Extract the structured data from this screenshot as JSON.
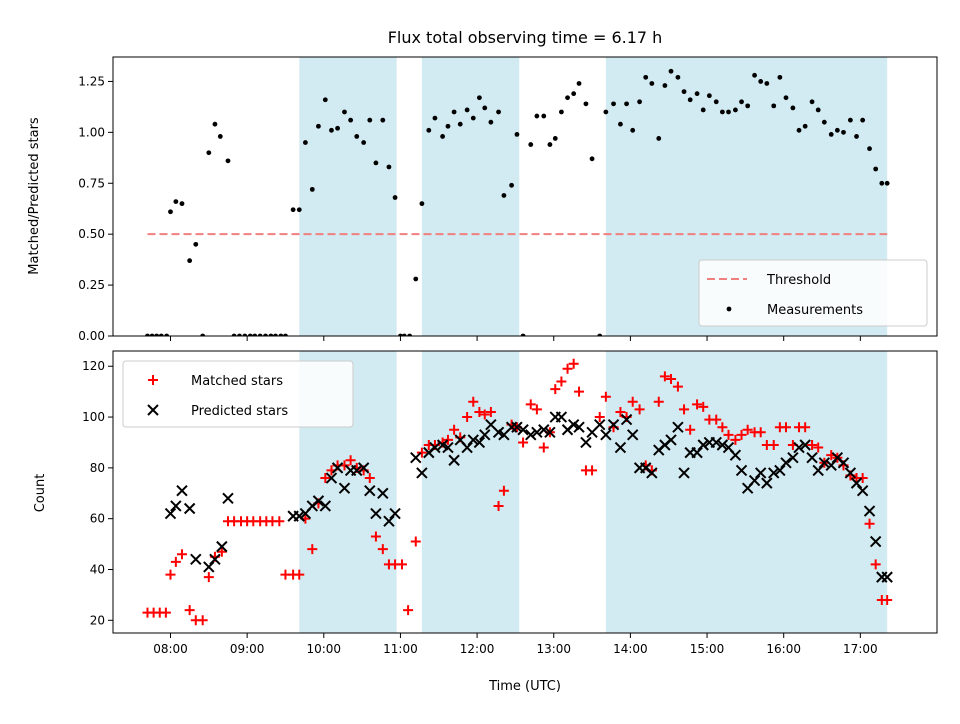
{
  "chart_data": [
    {
      "type": "scatter",
      "title": "Flux total observing time = 6.17 h",
      "xlabel": "",
      "ylabel": "Matched/Predicted stars",
      "xlim": [
        7.25,
        18.0
      ],
      "ylim": [
        0.0,
        1.37
      ],
      "yticks": [
        0.0,
        0.25,
        0.5,
        0.75,
        1.0,
        1.25
      ],
      "ytick_labels": [
        "0.00",
        "0.25",
        "0.50",
        "0.75",
        "1.00",
        "1.25"
      ],
      "xticks": [
        8,
        9,
        10,
        11,
        12,
        13,
        14,
        15,
        16,
        17
      ],
      "xtick_labels": [
        "",
        "",
        "",
        "",
        "",
        "",
        "",
        "",
        "",
        ""
      ],
      "legend": {
        "position": "lower-right",
        "entries": [
          {
            "label": "Threshold",
            "marker": "dashed-line",
            "color": "#f08080"
          },
          {
            "label": "Measurements",
            "marker": "dot",
            "color": "#000000"
          }
        ]
      },
      "shaded_intervals": [
        [
          9.68,
          10.95
        ],
        [
          11.28,
          12.55
        ],
        [
          13.68,
          17.35
        ]
      ],
      "shade_color": "#add8e6",
      "threshold": {
        "value": 0.5,
        "x_range": [
          7.7,
          17.35
        ],
        "label": "Threshold"
      },
      "series": [
        {
          "name": "Measurements",
          "color": "#000000",
          "x": [
            7.7,
            7.76,
            7.82,
            7.88,
            7.95,
            8.0,
            8.07,
            8.15,
            8.25,
            8.33,
            8.42,
            8.5,
            8.58,
            8.65,
            8.75,
            8.83,
            8.9,
            8.97,
            9.04,
            9.1,
            9.17,
            9.24,
            9.31,
            9.37,
            9.44,
            9.5,
            9.6,
            9.68,
            9.76,
            9.85,
            9.93,
            10.02,
            10.1,
            10.18,
            10.27,
            10.35,
            10.43,
            10.52,
            10.6,
            10.68,
            10.77,
            10.85,
            10.93,
            11.0,
            11.05,
            11.12,
            11.2,
            11.28,
            11.37,
            11.45,
            11.55,
            11.62,
            11.7,
            11.78,
            11.87,
            11.95,
            12.03,
            12.1,
            12.18,
            12.28,
            12.35,
            12.45,
            12.52,
            12.6,
            12.7,
            12.78,
            12.87,
            12.95,
            13.02,
            13.1,
            13.18,
            13.26,
            13.33,
            13.42,
            13.5,
            13.6,
            13.68,
            13.78,
            13.87,
            13.95,
            14.03,
            14.12,
            14.2,
            14.28,
            14.37,
            14.45,
            14.53,
            14.62,
            14.7,
            14.78,
            14.87,
            14.95,
            15.03,
            15.12,
            15.2,
            15.28,
            15.37,
            15.45,
            15.53,
            15.62,
            15.7,
            15.78,
            15.87,
            15.95,
            16.03,
            16.12,
            16.2,
            16.28,
            16.37,
            16.45,
            16.53,
            16.62,
            16.7,
            16.78,
            16.87,
            16.95,
            17.03,
            17.12,
            17.2,
            17.28,
            17.35
          ],
          "y": [
            0.0,
            0.0,
            0.0,
            0.0,
            0.0,
            0.61,
            0.66,
            0.65,
            0.37,
            0.45,
            0.0,
            0.9,
            1.04,
            0.98,
            0.86,
            0.0,
            0.0,
            0.0,
            0.0,
            0.0,
            0.0,
            0.0,
            0.0,
            0.0,
            0.0,
            0.0,
            0.62,
            0.62,
            0.95,
            0.72,
            1.03,
            1.16,
            1.01,
            1.02,
            1.1,
            1.06,
            0.98,
            0.95,
            1.06,
            0.85,
            1.06,
            0.83,
            0.68,
            0.0,
            0.0,
            0.0,
            0.28,
            0.65,
            1.01,
            1.07,
            0.98,
            1.03,
            1.1,
            1.04,
            1.11,
            1.07,
            1.17,
            1.12,
            1.05,
            1.1,
            0.69,
            0.74,
            0.99,
            0.0,
            0.94,
            1.08,
            1.08,
            0.94,
            0.97,
            1.1,
            1.17,
            1.19,
            1.24,
            1.14,
            0.87,
            0.0,
            1.1,
            1.14,
            1.04,
            1.14,
            1.01,
            1.15,
            1.27,
            1.24,
            0.97,
            1.23,
            1.3,
            1.27,
            1.2,
            1.16,
            1.19,
            1.11,
            1.18,
            1.15,
            1.1,
            1.1,
            1.11,
            1.15,
            1.13,
            1.28,
            1.25,
            1.24,
            1.13,
            1.27,
            1.17,
            1.12,
            1.01,
            1.03,
            1.15,
            1.11,
            1.05,
            0.99,
            1.01,
            1.0,
            1.06,
            0.98,
            1.06,
            0.92,
            0.82,
            0.75,
            0.75
          ]
        }
      ]
    },
    {
      "type": "scatter",
      "title": "",
      "xlabel": "Time (UTC)",
      "ylabel": "Count",
      "xlim": [
        7.25,
        18.0
      ],
      "ylim": [
        15,
        126
      ],
      "yticks": [
        20,
        40,
        60,
        80,
        100,
        120
      ],
      "ytick_labels": [
        "20",
        "40",
        "60",
        "80",
        "100",
        "120"
      ],
      "xticks": [
        8,
        9,
        10,
        11,
        12,
        13,
        14,
        15,
        16,
        17
      ],
      "xtick_labels": [
        "08:00",
        "09:00",
        "10:00",
        "11:00",
        "12:00",
        "13:00",
        "14:00",
        "15:00",
        "16:00",
        "17:00"
      ],
      "legend": {
        "position": "upper-left",
        "entries": [
          {
            "label": "Matched stars",
            "marker": "plus",
            "color": "#ff0000"
          },
          {
            "label": "Predicted stars",
            "marker": "x",
            "color": "#000000"
          }
        ]
      },
      "shaded_intervals": [
        [
          9.68,
          10.95
        ],
        [
          11.28,
          12.55
        ],
        [
          13.68,
          17.35
        ]
      ],
      "shade_color": "#add8e6",
      "series": [
        {
          "name": "Matched stars",
          "marker": "plus",
          "color": "#ff0000",
          "x": [
            7.7,
            7.78,
            7.86,
            7.94,
            8.0,
            8.07,
            8.15,
            8.25,
            8.33,
            8.42,
            8.5,
            8.58,
            8.67,
            8.75,
            8.83,
            8.92,
            9.0,
            9.08,
            9.17,
            9.25,
            9.33,
            9.42,
            9.5,
            9.6,
            9.68,
            9.76,
            9.85,
            9.93,
            10.02,
            10.1,
            10.18,
            10.27,
            10.35,
            10.43,
            10.52,
            10.6,
            10.68,
            10.77,
            10.85,
            10.93,
            11.02,
            11.1,
            11.2,
            11.28,
            11.37,
            11.45,
            11.55,
            11.62,
            11.7,
            11.78,
            11.87,
            11.95,
            12.03,
            12.1,
            12.18,
            12.28,
            12.35,
            12.45,
            12.52,
            12.6,
            12.7,
            12.78,
            12.87,
            12.95,
            13.02,
            13.1,
            13.18,
            13.26,
            13.33,
            13.42,
            13.5,
            13.6,
            13.68,
            13.78,
            13.87,
            13.95,
            14.03,
            14.12,
            14.2,
            14.28,
            14.37,
            14.45,
            14.53,
            14.62,
            14.7,
            14.78,
            14.87,
            14.95,
            15.03,
            15.12,
            15.2,
            15.28,
            15.37,
            15.45,
            15.53,
            15.62,
            15.7,
            15.78,
            15.87,
            15.95,
            16.03,
            16.12,
            16.2,
            16.28,
            16.37,
            16.45,
            16.53,
            16.62,
            16.7,
            16.78,
            16.87,
            16.95,
            17.03,
            17.12,
            17.2,
            17.28,
            17.35
          ],
          "y": [
            23,
            23,
            23,
            23,
            38,
            43,
            46,
            24,
            20,
            20,
            37,
            45,
            47,
            59,
            59,
            59,
            59,
            59,
            59,
            59,
            59,
            59,
            38,
            38,
            38,
            60,
            48,
            66,
            76,
            79,
            81,
            81,
            83,
            80,
            79,
            76,
            53,
            48,
            42,
            42,
            42,
            24,
            51,
            86,
            89,
            89,
            90,
            91,
            95,
            92,
            100,
            106,
            102,
            101,
            102,
            65,
            71,
            97,
            96,
            90,
            105,
            103,
            88,
            94,
            111,
            114,
            119,
            121,
            110,
            79,
            79,
            100,
            108,
            96,
            102,
            100,
            106,
            103,
            81,
            79,
            106,
            116,
            115,
            112,
            103,
            95,
            105,
            104,
            99,
            99,
            96,
            93,
            91,
            93,
            95,
            94,
            94,
            89,
            89,
            96,
            96,
            89,
            96,
            96,
            89,
            88,
            82,
            85,
            84,
            81,
            77,
            76,
            76,
            58,
            42,
            28,
            28
          ]
        },
        {
          "name": "Predicted stars",
          "marker": "x",
          "color": "#000000",
          "x": [
            8.0,
            8.07,
            8.15,
            8.25,
            8.33,
            8.5,
            8.58,
            8.67,
            8.75,
            9.6,
            9.68,
            9.76,
            9.85,
            9.93,
            10.02,
            10.1,
            10.18,
            10.27,
            10.35,
            10.43,
            10.52,
            10.6,
            10.68,
            10.77,
            10.85,
            10.93,
            11.2,
            11.28,
            11.37,
            11.45,
            11.55,
            11.62,
            11.7,
            11.78,
            11.87,
            11.95,
            12.03,
            12.1,
            12.18,
            12.28,
            12.35,
            12.45,
            12.52,
            12.6,
            12.7,
            12.78,
            12.87,
            12.95,
            13.02,
            13.1,
            13.18,
            13.26,
            13.33,
            13.42,
            13.5,
            13.6,
            13.68,
            13.78,
            13.87,
            13.95,
            14.03,
            14.12,
            14.2,
            14.28,
            14.37,
            14.45,
            14.53,
            14.62,
            14.7,
            14.78,
            14.87,
            14.95,
            15.03,
            15.12,
            15.2,
            15.28,
            15.37,
            15.45,
            15.53,
            15.62,
            15.7,
            15.78,
            15.87,
            15.95,
            16.03,
            16.12,
            16.2,
            16.28,
            16.37,
            16.45,
            16.53,
            16.62,
            16.7,
            16.78,
            16.87,
            16.95,
            17.03,
            17.12,
            17.2,
            17.28,
            17.35
          ],
          "y": [
            62,
            65,
            71,
            64,
            44,
            41,
            44,
            49,
            68,
            61,
            61,
            62,
            65,
            67,
            65,
            76,
            80,
            72,
            79,
            79,
            80,
            71,
            62,
            70,
            59,
            62,
            84,
            78,
            86,
            88,
            89,
            88,
            83,
            91,
            88,
            91,
            90,
            93,
            97,
            94,
            93,
            96,
            96,
            95,
            93,
            94,
            95,
            94,
            100,
            100,
            95,
            97,
            96,
            90,
            94,
            97,
            93,
            97,
            88,
            99,
            93,
            80,
            80,
            78,
            87,
            89,
            91,
            96,
            78,
            86,
            86,
            89,
            90,
            90,
            89,
            88,
            85,
            79,
            72,
            75,
            78,
            74,
            78,
            79,
            82,
            84,
            88,
            89,
            84,
            79,
            82,
            81,
            84,
            82,
            78,
            74,
            71,
            63,
            51,
            37,
            37
          ]
        }
      ]
    }
  ]
}
